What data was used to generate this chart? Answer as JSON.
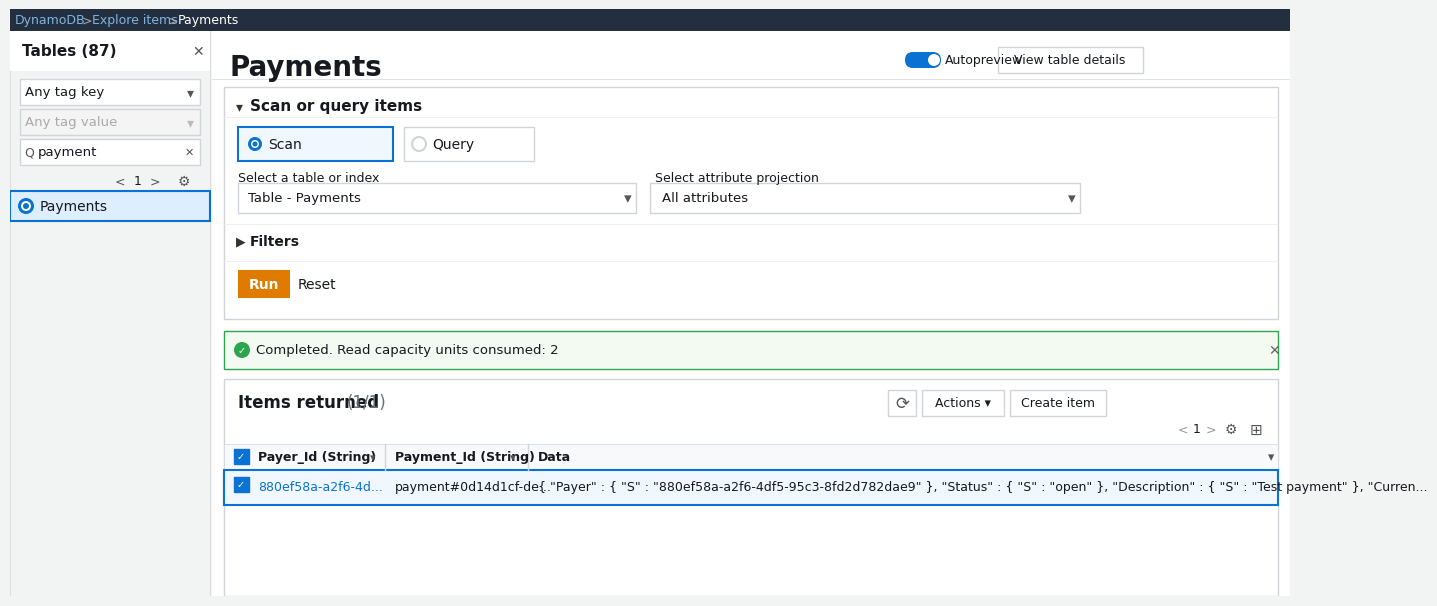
{
  "title": "Payments",
  "autopreview_label": "Autopreview",
  "view_table_details": "View table details",
  "sidebar_title": "Tables (87)",
  "any_tag_key": "Any tag key",
  "any_tag_value": "Any tag value",
  "search_text": "payment",
  "selected_table": "Payments",
  "scan_or_query_title": "Scan or query items",
  "scan_label": "Scan",
  "query_label": "Query",
  "select_table_label": "Select a table or index",
  "table_dropdown_value": "Table - Payments",
  "select_attr_label": "Select attribute projection",
  "attr_dropdown_value": "All attributes",
  "filters_label": "Filters",
  "run_button": "Run",
  "reset_button": "Reset",
  "completed_msg": "Completed. Read capacity units consumed: 2",
  "items_returned": "Items returned",
  "items_count": "(1/1)",
  "create_item_label": "Create item",
  "col1_header": "Payer_Id (String)",
  "col2_header": "Payment_Id (String)",
  "col3_header": "Data",
  "row1_col1": "880ef58a-a2f6-4d...",
  "row1_col2": "payment#0d14d1cf-de...",
  "row1_col3": "{ \"Payer\" : { \"S\" : \"880ef58a-a2f6-4df5-95c3-8fd2d782dae9\" }, \"Status\" : { \"S\" : \"open\" }, \"Description\" : { \"S\" : \"Test payment\" }, \"Curren...",
  "bg_color": "#f2f3f3",
  "white": "#ffffff",
  "link_color": "#0972d3",
  "border_color": "#d1d5da",
  "border_light": "#e9ebed",
  "run_btn_bg": "#e07b00",
  "run_btn_color": "#ffffff",
  "completed_bg": "#f2faf2",
  "completed_border": "#2ea44f",
  "sidebar_selected_bg": "#ddeeff",
  "sidebar_selected_border": "#0972d3",
  "text_dark": "#16191f",
  "text_gray": "#687078",
  "text_light": "#aab7b8",
  "scan_selected_fill": "#f0f7ff",
  "row_selected_bg": "#f0f7ff",
  "header_row_bg": "#f8f9fa",
  "breadcrumb_color": "#0972d3",
  "top_bar_bg": "#232f3e"
}
